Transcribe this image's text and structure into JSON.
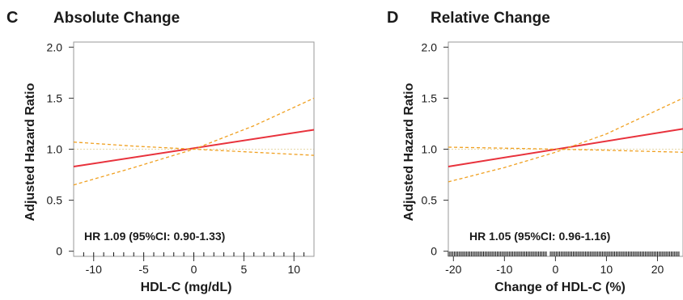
{
  "chart_data": [
    {
      "type": "line",
      "panel_letter": "C",
      "title": "Absolute Change",
      "xlabel": "HDL-C (mg/dL)",
      "ylabel": "Adjusted Hazard Ratio",
      "xlim": [
        -12,
        12
      ],
      "ylim": [
        -0.05,
        2.05
      ],
      "xticks": [
        -10,
        -5,
        0,
        5,
        10
      ],
      "yticks": [
        0,
        0.5,
        1.0,
        1.5,
        2.0
      ],
      "ytick_labels": [
        "0",
        "0.5",
        "1.0",
        "1.5",
        "2.0"
      ],
      "reference_line": 1.0,
      "annotation": "HR 1.09 (95%CI: 0.90-1.33)",
      "rug": "sparse",
      "rug_x": [
        -11,
        -10,
        -9,
        -8,
        -7,
        -6,
        -5,
        -4,
        -3,
        -2,
        -1,
        0,
        1,
        2,
        3,
        4,
        5,
        6,
        7,
        8,
        9,
        10,
        11
      ],
      "series": [
        {
          "role": "estimate",
          "color": "#e8323c",
          "style": "solid",
          "x": [
            -12,
            12
          ],
          "y": [
            0.83,
            1.19
          ]
        },
        {
          "role": "upper",
          "color": "#f0a020",
          "style": "dashed",
          "x": [
            -12,
            -6,
            0,
            6,
            12
          ],
          "y": [
            0.65,
            0.82,
            1.0,
            1.23,
            1.5
          ]
        },
        {
          "role": "lower",
          "color": "#f0a020",
          "style": "dashed",
          "x": [
            -12,
            -6,
            0,
            6,
            12
          ],
          "y": [
            1.07,
            1.03,
            1.0,
            0.97,
            0.94
          ]
        }
      ]
    },
    {
      "type": "line",
      "panel_letter": "D",
      "title": "Relative Change",
      "xlabel": "Change of HDL-C (%)",
      "ylabel": "Adjusted Hazard Ratio",
      "xlim": [
        -21,
        25
      ],
      "ylim": [
        -0.05,
        2.05
      ],
      "xticks": [
        -20,
        -10,
        0,
        10,
        20
      ],
      "yticks": [
        0,
        0.5,
        1.0,
        1.5,
        2.0
      ],
      "ytick_labels": [
        "0",
        "0.5",
        "1.0",
        "1.5",
        "2.0"
      ],
      "reference_line": 1.0,
      "annotation": "HR 1.05 (95%CI: 0.96-1.16)",
      "rug": "dense",
      "rug_segments": [
        [
          -21,
          -1.5
        ],
        [
          -1.0,
          24.5
        ]
      ],
      "series": [
        {
          "role": "estimate",
          "color": "#e8323c",
          "style": "solid",
          "x": [
            -21,
            25
          ],
          "y": [
            0.83,
            1.2
          ]
        },
        {
          "role": "upper",
          "color": "#f0a020",
          "style": "dashed",
          "x": [
            -21,
            -10,
            0,
            10,
            25
          ],
          "y": [
            0.68,
            0.82,
            0.97,
            1.15,
            1.5
          ]
        },
        {
          "role": "lower",
          "color": "#f0a020",
          "style": "dashed",
          "x": [
            -21,
            -10,
            0,
            10,
            25
          ],
          "y": [
            1.02,
            1.01,
            1.0,
            0.99,
            0.97
          ]
        }
      ]
    }
  ]
}
